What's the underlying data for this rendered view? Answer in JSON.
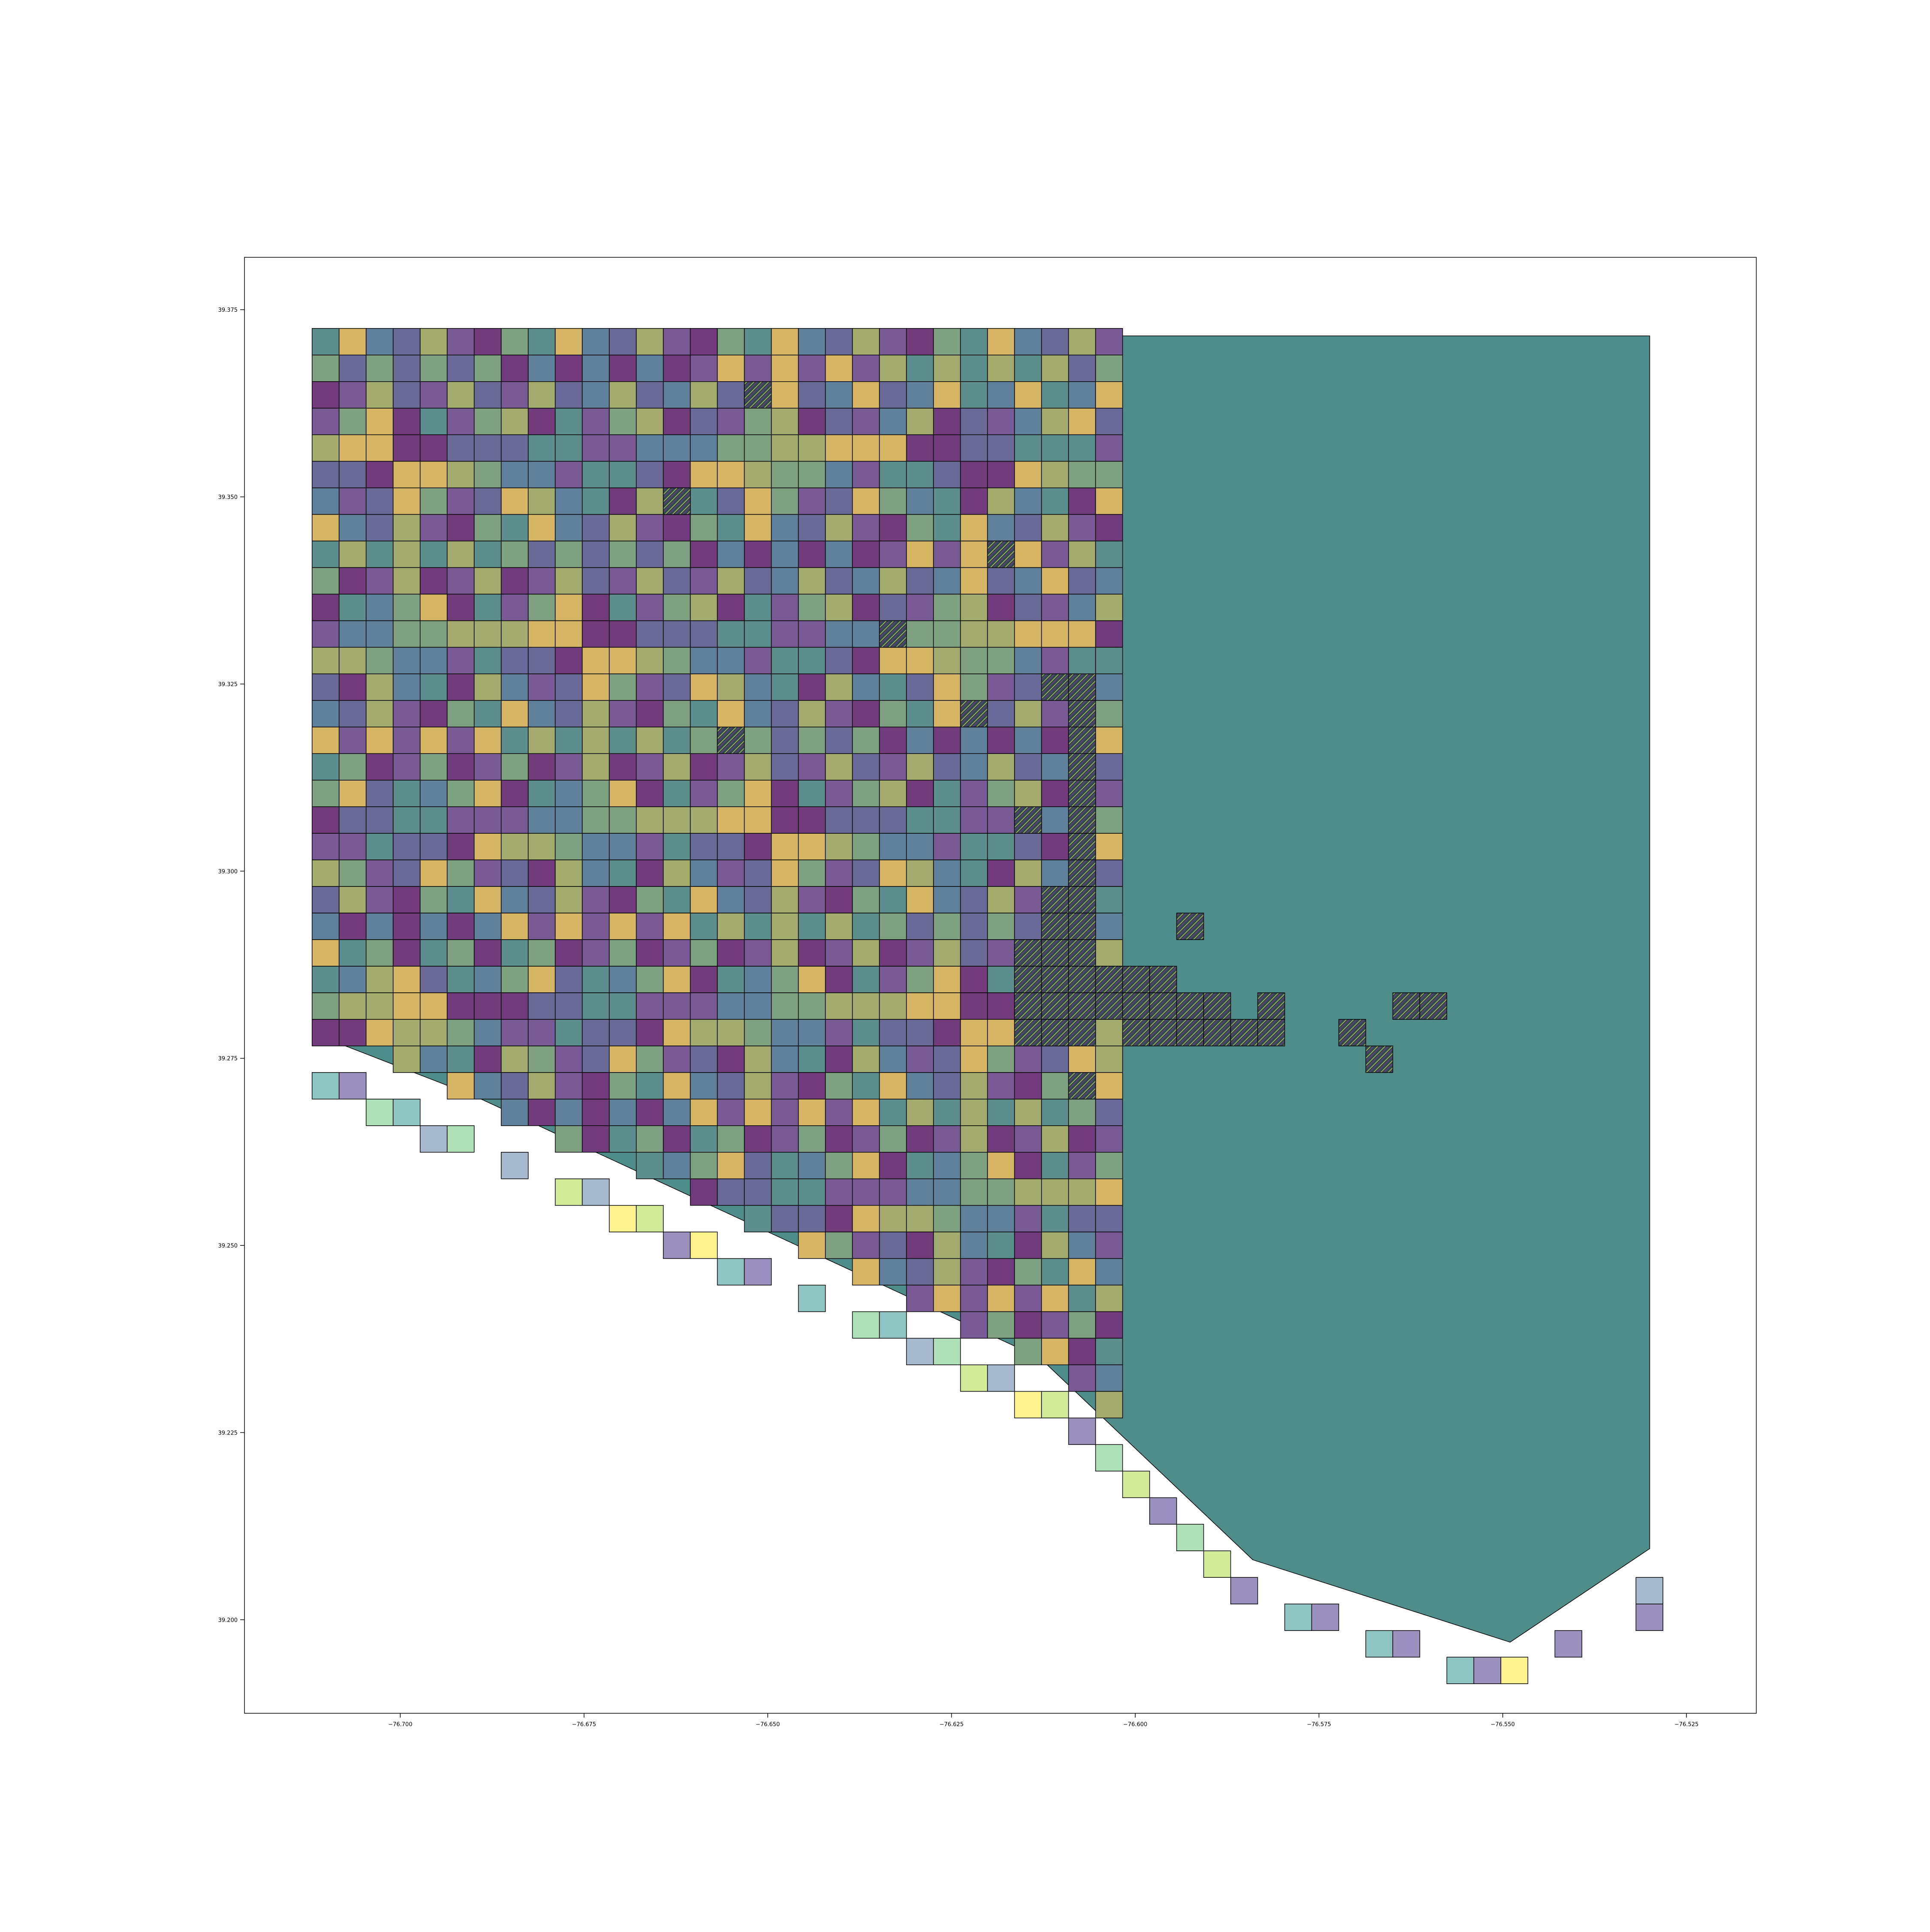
{
  "chart_data": {
    "type": "grid",
    "title": "",
    "xlabel": "",
    "ylabel": "",
    "xlim": [
      -76.7212,
      -76.5155
    ],
    "ylim": [
      39.1875,
      39.382
    ],
    "xticks": [
      -76.7,
      -76.675,
      -76.65,
      -76.625,
      -76.6,
      -76.575,
      -76.55,
      -76.525
    ],
    "xtick_labels": [
      "−76.700",
      "−76.675",
      "−76.650",
      "−76.625",
      "−76.600",
      "−76.575",
      "−76.550",
      "−76.525"
    ],
    "yticks": [
      39.2,
      39.225,
      39.25,
      39.275,
      39.3,
      39.325,
      39.35,
      39.375
    ],
    "ytick_labels": [
      "39.200",
      "39.225",
      "39.250",
      "39.275",
      "39.300",
      "39.325",
      "39.350",
      "39.375"
    ],
    "grid": {
      "x_min": -76.712,
      "y_max": 39.3725,
      "cell_width": 0.003676,
      "cell_height": 0.00355,
      "columns": 30,
      "rows": 50
    },
    "palette": [
      "#5b8e8c",
      "#6a6a99",
      "#723b7c",
      "#d6b565",
      "#a4ab6f",
      "#7ea181",
      "#5f819c",
      "#795a95"
    ],
    "outside_palette": [
      "#8ec4c2",
      "#9c90be",
      "#fdf38e",
      "#d2eb98",
      "#a7b9cf",
      "#aee1b7"
    ],
    "edge_color": "#000000",
    "grid_on": false,
    "legend": "none",
    "boundary": [
      [
        -76.711,
        39.3715
      ],
      [
        -76.53,
        39.3715
      ],
      [
        -76.53,
        39.2095
      ],
      [
        -76.549,
        39.197
      ],
      [
        -76.584,
        39.208
      ],
      [
        -76.613,
        39.235
      ],
      [
        -76.69,
        39.27
      ],
      [
        -76.711,
        39.278
      ]
    ],
    "boundary_fill": "#4f8d8b",
    "hatched_cells": [
      [
        2,
        16
      ],
      [
        6,
        13
      ],
      [
        8,
        25
      ],
      [
        11,
        21
      ],
      [
        13,
        27
      ],
      [
        14,
        24
      ],
      [
        15,
        15
      ],
      [
        13,
        28
      ],
      [
        14,
        28
      ],
      [
        15,
        28
      ],
      [
        16,
        28
      ],
      [
        17,
        28
      ],
      [
        18,
        28
      ],
      [
        19,
        28
      ],
      [
        20,
        28
      ],
      [
        21,
        27
      ],
      [
        21,
        28
      ],
      [
        22,
        27
      ],
      [
        22,
        28
      ],
      [
        23,
        26
      ],
      [
        23,
        27
      ],
      [
        23,
        28
      ],
      [
        24,
        26
      ],
      [
        24,
        27
      ],
      [
        24,
        28
      ],
      [
        24,
        29
      ],
      [
        24,
        30
      ],
      [
        24,
        31
      ],
      [
        25,
        26
      ],
      [
        25,
        27
      ],
      [
        25,
        28
      ],
      [
        25,
        29
      ],
      [
        25,
        30
      ],
      [
        25,
        31
      ],
      [
        25,
        32
      ],
      [
        25,
        33
      ],
      [
        25,
        35
      ],
      [
        26,
        26
      ],
      [
        26,
        27
      ],
      [
        26,
        28
      ],
      [
        26,
        30
      ],
      [
        26,
        31
      ],
      [
        26,
        32
      ],
      [
        26,
        33
      ],
      [
        26,
        34
      ],
      [
        26,
        35
      ],
      [
        18,
        26
      ],
      [
        22,
        32
      ],
      [
        26,
        38
      ],
      [
        25,
        40
      ],
      [
        25,
        41
      ],
      [
        27,
        39
      ],
      [
        28,
        28
      ]
    ],
    "light_cells": [
      [
        26,
        29
      ],
      [
        25,
        34
      ]
    ],
    "outside_cells": [
      [
        28,
        0
      ],
      [
        28,
        1
      ],
      [
        29,
        2
      ],
      [
        29,
        3
      ],
      [
        30,
        4
      ],
      [
        30,
        5
      ],
      [
        31,
        7
      ],
      [
        32,
        9
      ],
      [
        32,
        10
      ],
      [
        33,
        11
      ],
      [
        33,
        12
      ],
      [
        34,
        13
      ],
      [
        34,
        14
      ],
      [
        35,
        15
      ],
      [
        35,
        16
      ],
      [
        36,
        18
      ],
      [
        37,
        20
      ],
      [
        37,
        21
      ],
      [
        38,
        22
      ],
      [
        38,
        23
      ],
      [
        39,
        24
      ],
      [
        39,
        25
      ],
      [
        40,
        26
      ],
      [
        40,
        27
      ],
      [
        41,
        28
      ],
      [
        42,
        29
      ],
      [
        43,
        30
      ],
      [
        44,
        31
      ],
      [
        45,
        32
      ],
      [
        46,
        33
      ],
      [
        47,
        34
      ],
      [
        48,
        36
      ],
      [
        48,
        37
      ],
      [
        49,
        39
      ],
      [
        49,
        40
      ],
      [
        50,
        42
      ],
      [
        50,
        43
      ],
      [
        50,
        44
      ],
      [
        49,
        46
      ],
      [
        48,
        49
      ],
      [
        47,
        49
      ]
    ]
  }
}
